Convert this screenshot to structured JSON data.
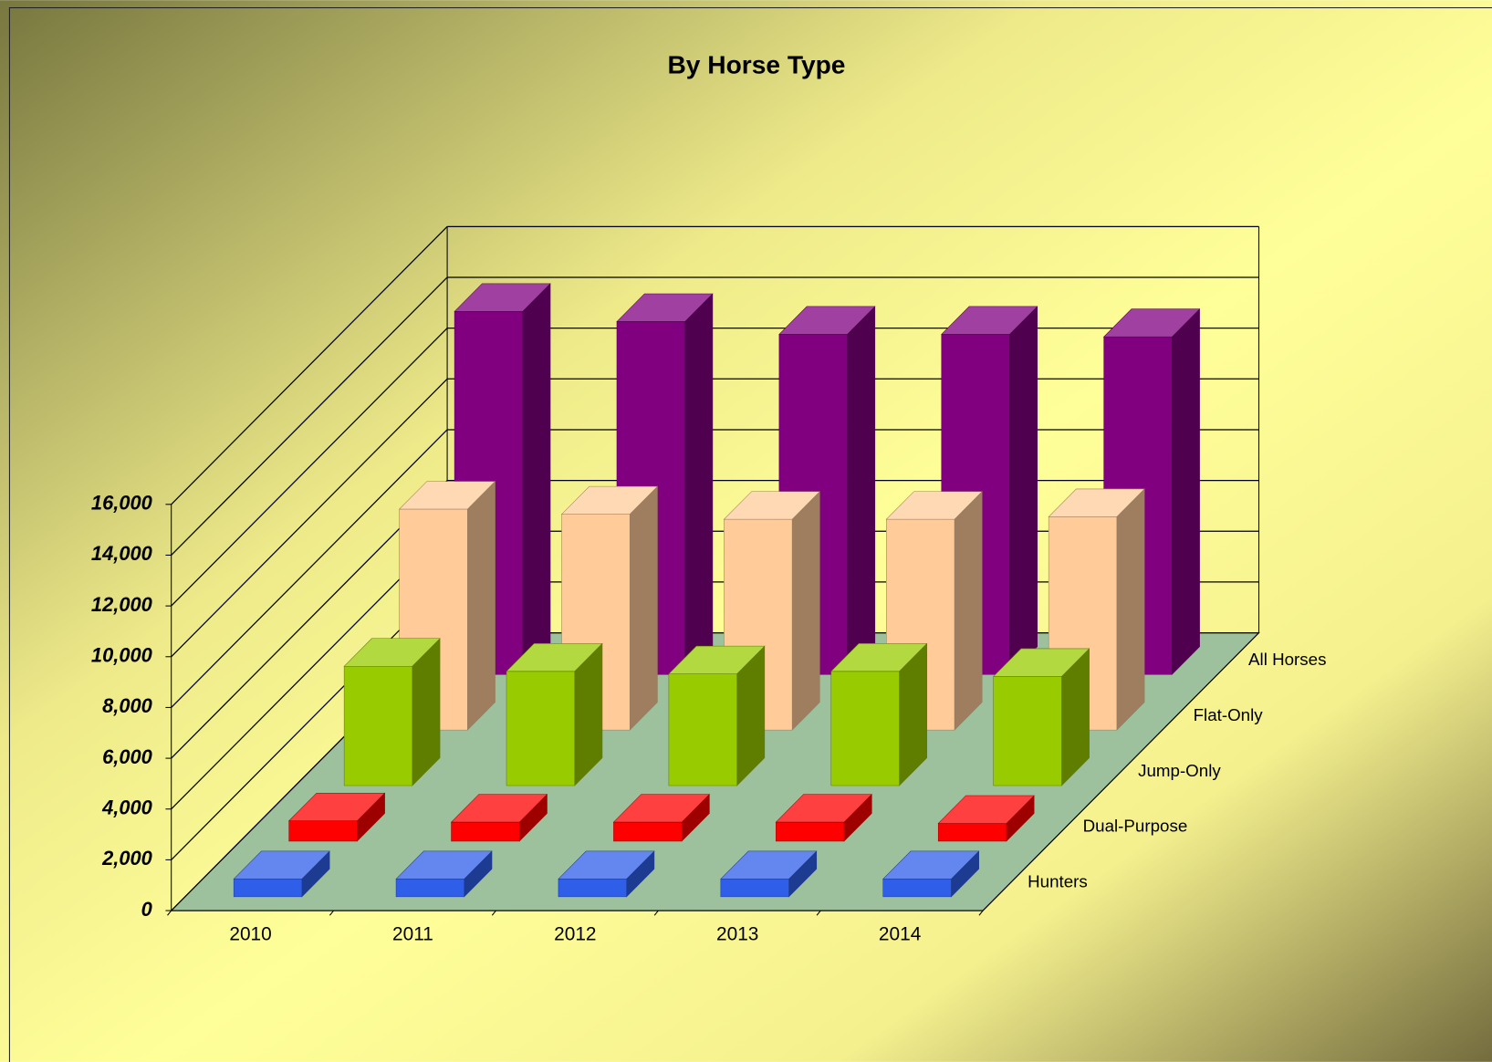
{
  "chart_data": {
    "type": "bar3d",
    "title": "By Horse Type",
    "categories": [
      "2010",
      "2011",
      "2012",
      "2013",
      "2014"
    ],
    "series": [
      {
        "name": "Hunters",
        "color": "#2f5fe8",
        "values": [
          700,
          700,
          700,
          700,
          700
        ]
      },
      {
        "name": "Dual-Purpose",
        "color": "#ff0000",
        "values": [
          800,
          750,
          750,
          750,
          700
        ]
      },
      {
        "name": "Jump-Only",
        "color": "#99cc00",
        "values": [
          4700,
          4500,
          4400,
          4500,
          4300
        ]
      },
      {
        "name": "Flat-Only",
        "color": "#ffcc99",
        "values": [
          8700,
          8500,
          8300,
          8300,
          8400
        ]
      },
      {
        "name": "All Horses",
        "color": "#800080",
        "values": [
          14300,
          13900,
          13400,
          13400,
          13300
        ]
      }
    ],
    "ylim": [
      0,
      16000
    ],
    "yticks": [
      0,
      {
        "value": 2000,
        "label": "2,000"
      },
      {
        "value": 4000,
        "label": "4,000"
      },
      {
        "value": 6000,
        "label": "6,000"
      },
      {
        "value": 8000,
        "label": "8,000"
      },
      {
        "value": 10000,
        "label": "10,000"
      },
      {
        "value": 12000,
        "label": "12,000"
      },
      {
        "value": 14000,
        "label": "14,000"
      },
      {
        "value": 16000,
        "label": "16,000"
      }
    ],
    "grid": true,
    "floor_color": "#9dc19d"
  }
}
